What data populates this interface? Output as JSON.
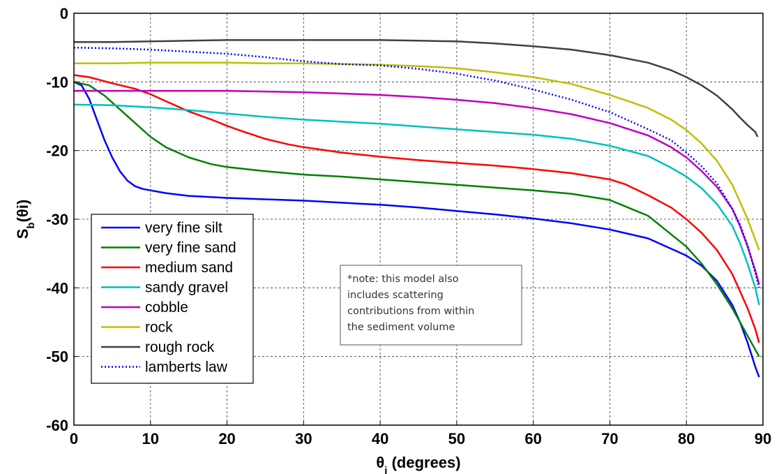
{
  "chart_data": {
    "type": "line",
    "title": "",
    "xlabel": "θi (degrees)",
    "ylabel": "Sb(θi)",
    "xlim": [
      0,
      90
    ],
    "ylim": [
      -60,
      0
    ],
    "xticks": [
      "0",
      "10",
      "20",
      "30",
      "40",
      "50",
      "60",
      "70",
      "80",
      "90"
    ],
    "yticks": [
      "0",
      "-10",
      "-20",
      "-30",
      "-40",
      "-50",
      "-60"
    ],
    "grid": true,
    "legend_position": "bottom-left",
    "note": "*note: this model also includes scattering contributions from within the sediment volume",
    "note_lines": [
      "*note: this model also",
      "includes scattering",
      "contributions from within",
      "the sediment volume"
    ],
    "series": [
      {
        "name": "very fine silt",
        "color": "#0000ff",
        "style": "solid",
        "x": [
          0,
          1,
          2,
          3,
          4,
          5,
          6,
          7,
          8,
          9,
          10,
          12,
          15,
          20,
          25,
          30,
          35,
          40,
          45,
          50,
          55,
          60,
          65,
          70,
          75,
          80,
          82,
          84,
          86,
          87,
          88,
          89,
          89.5
        ],
        "y": [
          -10,
          -10.5,
          -12.5,
          -15.5,
          -18.5,
          -21,
          -23,
          -24.4,
          -25.2,
          -25.6,
          -25.8,
          -26.2,
          -26.6,
          -26.9,
          -27.1,
          -27.3,
          -27.6,
          -27.9,
          -28.3,
          -28.8,
          -29.3,
          -29.9,
          -30.6,
          -31.5,
          -32.8,
          -35.3,
          -36.8,
          -39,
          -42.5,
          -45,
          -48,
          -51.5,
          -53
        ]
      },
      {
        "name": "very fine sand",
        "color": "#008000",
        "style": "solid",
        "x": [
          0,
          2,
          4,
          6,
          8,
          10,
          12,
          15,
          18,
          20,
          25,
          30,
          35,
          40,
          45,
          50,
          55,
          60,
          65,
          70,
          75,
          80,
          82,
          84,
          86,
          87,
          88,
          89,
          89.5
        ],
        "y": [
          -10,
          -10.5,
          -12,
          -14,
          -16,
          -18,
          -19.5,
          -21,
          -22,
          -22.4,
          -23,
          -23.5,
          -23.8,
          -24.2,
          -24.6,
          -25,
          -25.4,
          -25.8,
          -26.3,
          -27.2,
          -29.5,
          -34,
          -36.5,
          -39.5,
          -43,
          -45,
          -47,
          -49,
          -50
        ]
      },
      {
        "name": "medium sand",
        "color": "#ff0000",
        "style": "solid",
        "x": [
          0,
          2,
          5,
          8,
          10,
          12,
          15,
          18,
          20,
          22,
          25,
          28,
          30,
          35,
          40,
          45,
          50,
          55,
          60,
          65,
          70,
          72,
          75,
          78,
          80,
          82,
          84,
          86,
          87,
          88,
          89,
          89.5
        ],
        "y": [
          -9,
          -9.3,
          -10.2,
          -11,
          -11.8,
          -12.8,
          -14.3,
          -15.5,
          -16.4,
          -17.2,
          -18.3,
          -19.1,
          -19.5,
          -20.3,
          -20.9,
          -21.4,
          -21.8,
          -22.2,
          -22.7,
          -23.3,
          -24.2,
          -24.9,
          -26.5,
          -28.3,
          -30,
          -32,
          -34.5,
          -38,
          -40.5,
          -43,
          -46,
          -48
        ]
      },
      {
        "name": "sandy gravel",
        "color": "#00bfbf",
        "style": "solid",
        "x": [
          0,
          5,
          10,
          15,
          20,
          25,
          30,
          35,
          40,
          45,
          50,
          55,
          60,
          65,
          70,
          75,
          78,
          80,
          82,
          84,
          86,
          87,
          88,
          89,
          89.5
        ],
        "y": [
          -13.3,
          -13.4,
          -13.7,
          -14.1,
          -14.6,
          -15.1,
          -15.5,
          -15.8,
          -16.1,
          -16.5,
          -16.9,
          -17.3,
          -17.7,
          -18.3,
          -19.3,
          -20.8,
          -22.5,
          -23.8,
          -25.5,
          -27.8,
          -31,
          -33.5,
          -36.5,
          -40,
          -42.5
        ]
      },
      {
        "name": "cobble",
        "color": "#bf00bf",
        "style": "solid",
        "x": [
          0,
          5,
          10,
          15,
          20,
          25,
          30,
          35,
          40,
          45,
          50,
          55,
          60,
          65,
          70,
          75,
          78,
          80,
          82,
          84,
          86,
          87,
          88,
          89,
          89.5
        ],
        "y": [
          -11.3,
          -11.3,
          -11.3,
          -11.3,
          -11.3,
          -11.4,
          -11.5,
          -11.7,
          -11.9,
          -12.2,
          -12.6,
          -13.1,
          -13.8,
          -14.7,
          -16,
          -17.8,
          -19.5,
          -21,
          -23,
          -25.3,
          -28.5,
          -31,
          -34,
          -37.5,
          -39.5
        ]
      },
      {
        "name": "rock",
        "color": "#bfbf00",
        "style": "solid",
        "x": [
          0,
          5,
          10,
          15,
          20,
          25,
          30,
          35,
          40,
          45,
          50,
          55,
          60,
          65,
          70,
          75,
          78,
          80,
          82,
          84,
          86,
          87,
          88,
          89,
          89.5
        ],
        "y": [
          -7.3,
          -7.3,
          -7.2,
          -7.2,
          -7.2,
          -7.3,
          -7.3,
          -7.4,
          -7.5,
          -7.7,
          -8,
          -8.6,
          -9.3,
          -10.3,
          -11.9,
          -13.8,
          -15.5,
          -17,
          -19,
          -21.5,
          -25,
          -27.5,
          -30,
          -33,
          -34.5
        ]
      },
      {
        "name": "rough rock",
        "color": "#404040",
        "style": "solid",
        "x": [
          0,
          5,
          10,
          15,
          20,
          25,
          30,
          35,
          40,
          45,
          50,
          55,
          60,
          65,
          70,
          75,
          78,
          80,
          82,
          84,
          85,
          86,
          87,
          88,
          89,
          89.3
        ],
        "y": [
          -4.2,
          -4.2,
          -4.1,
          -4.0,
          -3.9,
          -3.9,
          -3.9,
          -3.9,
          -3.9,
          -4.0,
          -4.1,
          -4.4,
          -4.8,
          -5.3,
          -6.1,
          -7.2,
          -8.3,
          -9.3,
          -10.5,
          -12,
          -13,
          -14,
          -15.2,
          -16.3,
          -17.3,
          -18
        ]
      },
      {
        "name": "lamberts law",
        "color": "#0000ff",
        "style": "dotted",
        "x": [
          0,
          5,
          10,
          15,
          20,
          25,
          30,
          35,
          40,
          45,
          50,
          55,
          60,
          65,
          70,
          75,
          78,
          80,
          82,
          84,
          86,
          87,
          88,
          89,
          89.5
        ],
        "y": [
          -5,
          -5.1,
          -5.3,
          -5.6,
          -5.9,
          -6.4,
          -7,
          -7.4,
          -7.6,
          -8.1,
          -8.8,
          -9.8,
          -11.1,
          -12.6,
          -14.4,
          -16.9,
          -18.5,
          -20.3,
          -22.3,
          -24.8,
          -28.5,
          -30.8,
          -33.8,
          -37.8,
          -40
        ]
      }
    ]
  }
}
